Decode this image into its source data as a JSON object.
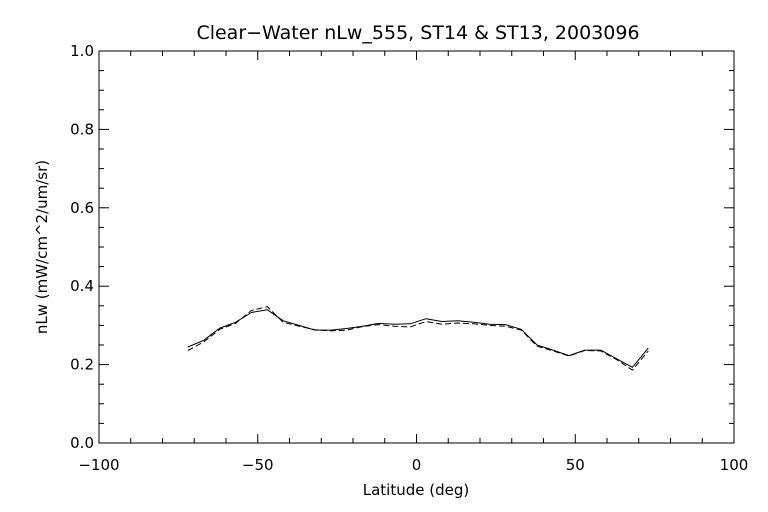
{
  "chart_data": {
    "type": "line",
    "title": "Clear−Water nLw_555, ST14 & ST13, 2003096",
    "xlabel": "Latitude (deg)",
    "ylabel": "nLw (mW/cm^2/um/sr)",
    "xlim": [
      -100,
      100
    ],
    "ylim": [
      0.0,
      1.0
    ],
    "xticks": [
      -100,
      -50,
      0,
      50,
      100
    ],
    "xtick_labels": [
      "−100",
      "−50",
      "0",
      "50",
      "100"
    ],
    "yticks": [
      0.0,
      0.2,
      0.4,
      0.6,
      0.8,
      1.0
    ],
    "ytick_labels": [
      "0.0",
      "0.2",
      "0.4",
      "0.6",
      "0.8",
      "1.0"
    ],
    "grid": false,
    "series": [
      {
        "style": "solid",
        "color": "#000000",
        "x": [
          -72,
          -67,
          -62,
          -57,
          -52,
          -47,
          -42,
          -37,
          -32,
          -27,
          -22,
          -17,
          -12,
          -7,
          -2,
          3,
          8,
          13,
          18,
          23,
          28,
          33,
          38,
          43,
          48,
          53,
          58,
          63,
          68,
          73
        ],
        "y": [
          0.245,
          0.262,
          0.293,
          0.308,
          0.333,
          0.34,
          0.312,
          0.3,
          0.288,
          0.288,
          0.292,
          0.298,
          0.305,
          0.303,
          0.304,
          0.317,
          0.31,
          0.312,
          0.308,
          0.303,
          0.302,
          0.29,
          0.25,
          0.237,
          0.223,
          0.237,
          0.237,
          0.215,
          0.193,
          0.242
        ]
      },
      {
        "style": "dashed",
        "color": "#000000",
        "x": [
          -72,
          -67,
          -62,
          -57,
          -52,
          -47,
          -42,
          -37,
          -32,
          -27,
          -22,
          -17,
          -12,
          -7,
          -2,
          3,
          8,
          13,
          18,
          23,
          28,
          33,
          38,
          43,
          48,
          53,
          58,
          63,
          68,
          73
        ],
        "y": [
          0.236,
          0.258,
          0.29,
          0.305,
          0.338,
          0.348,
          0.308,
          0.298,
          0.289,
          0.286,
          0.288,
          0.297,
          0.302,
          0.298,
          0.296,
          0.31,
          0.303,
          0.306,
          0.304,
          0.3,
          0.298,
          0.288,
          0.247,
          0.235,
          0.222,
          0.236,
          0.235,
          0.213,
          0.186,
          0.235
        ]
      }
    ]
  }
}
